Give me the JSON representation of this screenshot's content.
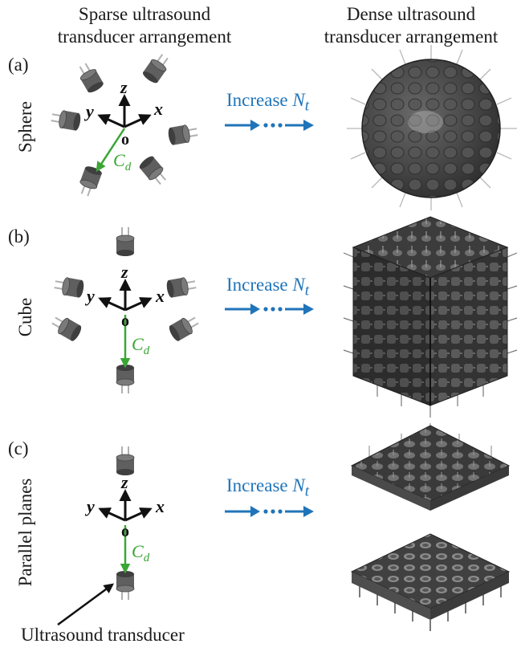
{
  "headers": {
    "sparse": [
      "Sparse ultrasound",
      "transducer arrangement"
    ],
    "dense": [
      "Dense ultrasound",
      "transducer arrangement"
    ]
  },
  "panels": [
    {
      "label": "(a)",
      "row_name": "Sphere",
      "axes": {
        "x": "x",
        "y": "y",
        "z": "z",
        "origin": "o"
      },
      "distance": "C",
      "distance_sub": "d",
      "arrow_text": "Increase",
      "arrow_var": "N",
      "arrow_sub": "t"
    },
    {
      "label": "(b)",
      "row_name": "Cube",
      "axes": {
        "x": "x",
        "y": "y",
        "z": "z",
        "origin": "o"
      },
      "distance": "C",
      "distance_sub": "d",
      "arrow_text": "Increase",
      "arrow_var": "N",
      "arrow_sub": "t"
    },
    {
      "label": "(c)",
      "row_name": "Parallel planes",
      "axes": {
        "x": "x",
        "y": "y",
        "z": "z",
        "origin": "o"
      },
      "distance": "C",
      "distance_sub": "d",
      "arrow_text": "Increase",
      "arrow_var": "N",
      "arrow_sub": "t"
    }
  ],
  "caption": "Ultrasound transducer",
  "colors": {
    "accent_blue": "#1f74b9",
    "distance_green": "#3aa635",
    "transducer_gray": "#5f5f5f"
  }
}
